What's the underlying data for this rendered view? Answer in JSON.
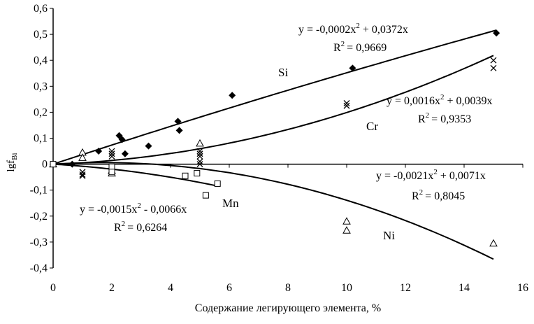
{
  "chart_data": {
    "type": "scatter",
    "title": "",
    "xlabel": "Содержание легирующего элемента, %",
    "ylabel": "lgf",
    "ylabel_sub": "Bi",
    "xlim": [
      0,
      16
    ],
    "ylim": [
      -0.4,
      0.6
    ],
    "xticks": [
      "0",
      "2",
      "4",
      "6",
      "8",
      "10",
      "12",
      "14",
      "16"
    ],
    "xtick_values": [
      0,
      2,
      4,
      6,
      8,
      10,
      12,
      14,
      16
    ],
    "yticks": [
      "0,6",
      "0,5",
      "0,4",
      "0,3",
      "0,2",
      "0,1",
      "0",
      "-0,1",
      "-0,2",
      "-0,3",
      "-0,4"
    ],
    "ytick_values": [
      0.6,
      0.5,
      0.4,
      0.3,
      0.2,
      0.1,
      0,
      -0.1,
      -0.2,
      -0.3,
      -0.4
    ],
    "grid": false,
    "series": [
      {
        "name": "Si",
        "marker": "diamond",
        "trend": [
          -0.0002,
          0.0372
        ],
        "trend_range": [
          0,
          15.1
        ],
        "equation": "y = -0,0002x",
        "equation_tail": " + 0,0372x",
        "r2": "= 0,9669",
        "points": [
          [
            0,
            0
          ],
          [
            0.65,
            0
          ],
          [
            1.55,
            0.05
          ],
          [
            2.25,
            0.11
          ],
          [
            2.35,
            0.095
          ],
          [
            2.45,
            0.04
          ],
          [
            3.25,
            0.07
          ],
          [
            4.25,
            0.165
          ],
          [
            4.3,
            0.13
          ],
          [
            6.1,
            0.265
          ],
          [
            10.2,
            0.37
          ],
          [
            15.1,
            0.505
          ]
        ]
      },
      {
        "name": "Cr",
        "marker": "x",
        "trend": [
          0.0016,
          0.0039
        ],
        "trend_range": [
          0,
          15
        ],
        "equation": "y = 0,0016x",
        "equation_tail": " + 0,0039x",
        "r2": "= 0,9353",
        "points": [
          [
            0,
            0
          ],
          [
            1,
            -0.03
          ],
          [
            1,
            -0.04
          ],
          [
            1,
            -0.045
          ],
          [
            2,
            0.05
          ],
          [
            2,
            0.03
          ],
          [
            2,
            0.04
          ],
          [
            5,
            0.05
          ],
          [
            5,
            0.04
          ],
          [
            5,
            0.03
          ],
          [
            5,
            0.01
          ],
          [
            5,
            0
          ],
          [
            10,
            0.235
          ],
          [
            10,
            0.225
          ],
          [
            15,
            0.4
          ],
          [
            15,
            0.37
          ]
        ]
      },
      {
        "name": "Ni",
        "marker": "triangle",
        "trend": [
          -0.0021,
          0.0071
        ],
        "trend_range": [
          0,
          15
        ],
        "equation": "y = -0,0021x",
        "equation_tail": " + 0,0071x",
        "r2": "= 0,8045",
        "points": [
          [
            0,
            0
          ],
          [
            1,
            0.045
          ],
          [
            1,
            0.025
          ],
          [
            2,
            -0.025
          ],
          [
            2,
            -0.035
          ],
          [
            5,
            0.08
          ],
          [
            10,
            -0.22
          ],
          [
            10,
            -0.255
          ],
          [
            15,
            -0.305
          ]
        ]
      },
      {
        "name": "Mn",
        "marker": "square",
        "trend": [
          -0.0015,
          -0.0066
        ],
        "trend_range": [
          0,
          5.6
        ],
        "equation": "y = -0,0015x",
        "equation_tail": " - 0,0066x",
        "r2": "= 0,6264",
        "points": [
          [
            0,
            0
          ],
          [
            2,
            -0.01
          ],
          [
            2,
            -0.03
          ],
          [
            4.5,
            -0.045
          ],
          [
            4.9,
            -0.035
          ],
          [
            5.2,
            -0.12
          ],
          [
            5.6,
            -0.075
          ]
        ]
      }
    ]
  }
}
